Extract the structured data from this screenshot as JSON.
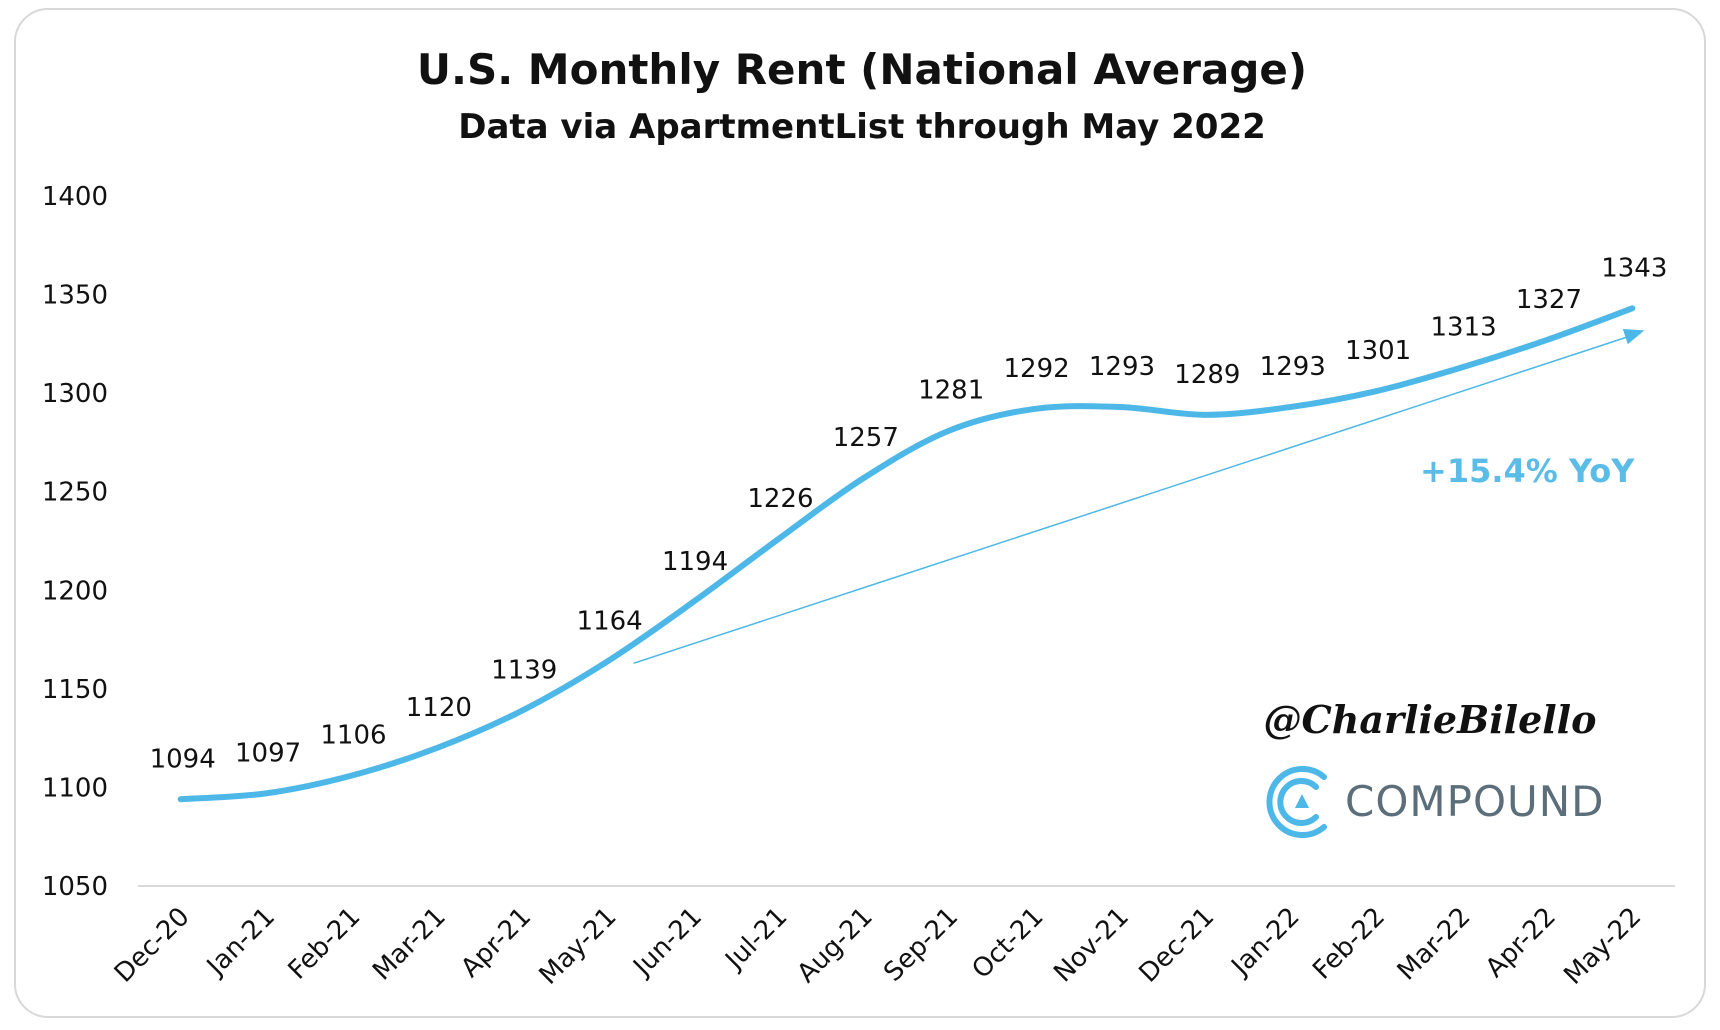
{
  "chart_data": {
    "type": "line",
    "title": "U.S. Monthly Rent (National Average)",
    "subtitle": "Data via ApartmentList through May 2022",
    "xlabel": "",
    "ylabel": "",
    "ylim": [
      1050,
      1400
    ],
    "yticks": [
      1050,
      1100,
      1150,
      1200,
      1250,
      1300,
      1350,
      1400
    ],
    "categories": [
      "Dec-20",
      "Jan-21",
      "Feb-21",
      "Mar-21",
      "Apr-21",
      "May-21",
      "Jun-21",
      "Jul-21",
      "Aug-21",
      "Sep-21",
      "Oct-21",
      "Nov-21",
      "Dec-21",
      "Jan-22",
      "Feb-22",
      "Mar-22",
      "Apr-22",
      "May-22"
    ],
    "series": [
      {
        "values": [
          1094,
          1097,
          1106,
          1120,
          1139,
          1164,
          1194,
          1226,
          1257,
          1281,
          1292,
          1293,
          1289,
          1293,
          1301,
          1313,
          1327,
          1343
        ]
      }
    ],
    "trend_arrow": {
      "from": {
        "x": "May-21",
        "y": 1164
      },
      "to": {
        "x": "May-22",
        "y": 1343
      }
    },
    "annotation": "+15.4% YoY",
    "grid": false,
    "legend": "none",
    "colors": {
      "line": "#4db8e8",
      "annotation": "#5bbce8",
      "axis": "#d9d9d9"
    }
  },
  "branding": {
    "handle": "@CharlieBilello",
    "logo_text": "COMPOUND",
    "logo_icon": "compound-logo-icon"
  }
}
